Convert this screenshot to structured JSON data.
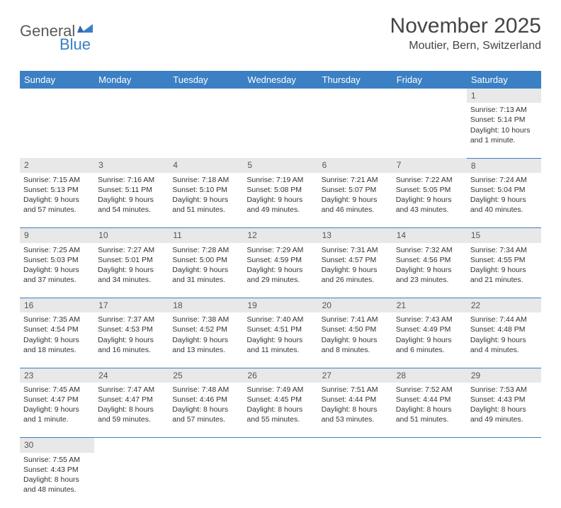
{
  "logo": {
    "textGray": "General",
    "textBlue": "Blue"
  },
  "title": "November 2025",
  "location": "Moutier, Bern, Switzerland",
  "header_bg": "#3b7fc4",
  "header_fg": "#ffffff",
  "daynum_bg": "#e8e8e8",
  "divider_color": "#3b7fc4",
  "days": [
    "Sunday",
    "Monday",
    "Tuesday",
    "Wednesday",
    "Thursday",
    "Friday",
    "Saturday"
  ],
  "weeks": [
    {
      "nums": [
        "",
        "",
        "",
        "",
        "",
        "",
        "1"
      ],
      "cells": [
        null,
        null,
        null,
        null,
        null,
        null,
        {
          "sunrise": "Sunrise: 7:13 AM",
          "sunset": "Sunset: 5:14 PM",
          "day1": "Daylight: 10 hours",
          "day2": "and 1 minute."
        }
      ]
    },
    {
      "nums": [
        "2",
        "3",
        "4",
        "5",
        "6",
        "7",
        "8"
      ],
      "cells": [
        {
          "sunrise": "Sunrise: 7:15 AM",
          "sunset": "Sunset: 5:13 PM",
          "day1": "Daylight: 9 hours",
          "day2": "and 57 minutes."
        },
        {
          "sunrise": "Sunrise: 7:16 AM",
          "sunset": "Sunset: 5:11 PM",
          "day1": "Daylight: 9 hours",
          "day2": "and 54 minutes."
        },
        {
          "sunrise": "Sunrise: 7:18 AM",
          "sunset": "Sunset: 5:10 PM",
          "day1": "Daylight: 9 hours",
          "day2": "and 51 minutes."
        },
        {
          "sunrise": "Sunrise: 7:19 AM",
          "sunset": "Sunset: 5:08 PM",
          "day1": "Daylight: 9 hours",
          "day2": "and 49 minutes."
        },
        {
          "sunrise": "Sunrise: 7:21 AM",
          "sunset": "Sunset: 5:07 PM",
          "day1": "Daylight: 9 hours",
          "day2": "and 46 minutes."
        },
        {
          "sunrise": "Sunrise: 7:22 AM",
          "sunset": "Sunset: 5:05 PM",
          "day1": "Daylight: 9 hours",
          "day2": "and 43 minutes."
        },
        {
          "sunrise": "Sunrise: 7:24 AM",
          "sunset": "Sunset: 5:04 PM",
          "day1": "Daylight: 9 hours",
          "day2": "and 40 minutes."
        }
      ]
    },
    {
      "nums": [
        "9",
        "10",
        "11",
        "12",
        "13",
        "14",
        "15"
      ],
      "cells": [
        {
          "sunrise": "Sunrise: 7:25 AM",
          "sunset": "Sunset: 5:03 PM",
          "day1": "Daylight: 9 hours",
          "day2": "and 37 minutes."
        },
        {
          "sunrise": "Sunrise: 7:27 AM",
          "sunset": "Sunset: 5:01 PM",
          "day1": "Daylight: 9 hours",
          "day2": "and 34 minutes."
        },
        {
          "sunrise": "Sunrise: 7:28 AM",
          "sunset": "Sunset: 5:00 PM",
          "day1": "Daylight: 9 hours",
          "day2": "and 31 minutes."
        },
        {
          "sunrise": "Sunrise: 7:29 AM",
          "sunset": "Sunset: 4:59 PM",
          "day1": "Daylight: 9 hours",
          "day2": "and 29 minutes."
        },
        {
          "sunrise": "Sunrise: 7:31 AM",
          "sunset": "Sunset: 4:57 PM",
          "day1": "Daylight: 9 hours",
          "day2": "and 26 minutes."
        },
        {
          "sunrise": "Sunrise: 7:32 AM",
          "sunset": "Sunset: 4:56 PM",
          "day1": "Daylight: 9 hours",
          "day2": "and 23 minutes."
        },
        {
          "sunrise": "Sunrise: 7:34 AM",
          "sunset": "Sunset: 4:55 PM",
          "day1": "Daylight: 9 hours",
          "day2": "and 21 minutes."
        }
      ]
    },
    {
      "nums": [
        "16",
        "17",
        "18",
        "19",
        "20",
        "21",
        "22"
      ],
      "cells": [
        {
          "sunrise": "Sunrise: 7:35 AM",
          "sunset": "Sunset: 4:54 PM",
          "day1": "Daylight: 9 hours",
          "day2": "and 18 minutes."
        },
        {
          "sunrise": "Sunrise: 7:37 AM",
          "sunset": "Sunset: 4:53 PM",
          "day1": "Daylight: 9 hours",
          "day2": "and 16 minutes."
        },
        {
          "sunrise": "Sunrise: 7:38 AM",
          "sunset": "Sunset: 4:52 PM",
          "day1": "Daylight: 9 hours",
          "day2": "and 13 minutes."
        },
        {
          "sunrise": "Sunrise: 7:40 AM",
          "sunset": "Sunset: 4:51 PM",
          "day1": "Daylight: 9 hours",
          "day2": "and 11 minutes."
        },
        {
          "sunrise": "Sunrise: 7:41 AM",
          "sunset": "Sunset: 4:50 PM",
          "day1": "Daylight: 9 hours",
          "day2": "and 8 minutes."
        },
        {
          "sunrise": "Sunrise: 7:43 AM",
          "sunset": "Sunset: 4:49 PM",
          "day1": "Daylight: 9 hours",
          "day2": "and 6 minutes."
        },
        {
          "sunrise": "Sunrise: 7:44 AM",
          "sunset": "Sunset: 4:48 PM",
          "day1": "Daylight: 9 hours",
          "day2": "and 4 minutes."
        }
      ]
    },
    {
      "nums": [
        "23",
        "24",
        "25",
        "26",
        "27",
        "28",
        "29"
      ],
      "cells": [
        {
          "sunrise": "Sunrise: 7:45 AM",
          "sunset": "Sunset: 4:47 PM",
          "day1": "Daylight: 9 hours",
          "day2": "and 1 minute."
        },
        {
          "sunrise": "Sunrise: 7:47 AM",
          "sunset": "Sunset: 4:47 PM",
          "day1": "Daylight: 8 hours",
          "day2": "and 59 minutes."
        },
        {
          "sunrise": "Sunrise: 7:48 AM",
          "sunset": "Sunset: 4:46 PM",
          "day1": "Daylight: 8 hours",
          "day2": "and 57 minutes."
        },
        {
          "sunrise": "Sunrise: 7:49 AM",
          "sunset": "Sunset: 4:45 PM",
          "day1": "Daylight: 8 hours",
          "day2": "and 55 minutes."
        },
        {
          "sunrise": "Sunrise: 7:51 AM",
          "sunset": "Sunset: 4:44 PM",
          "day1": "Daylight: 8 hours",
          "day2": "and 53 minutes."
        },
        {
          "sunrise": "Sunrise: 7:52 AM",
          "sunset": "Sunset: 4:44 PM",
          "day1": "Daylight: 8 hours",
          "day2": "and 51 minutes."
        },
        {
          "sunrise": "Sunrise: 7:53 AM",
          "sunset": "Sunset: 4:43 PM",
          "day1": "Daylight: 8 hours",
          "day2": "and 49 minutes."
        }
      ]
    },
    {
      "nums": [
        "30",
        "",
        "",
        "",
        "",
        "",
        ""
      ],
      "cells": [
        {
          "sunrise": "Sunrise: 7:55 AM",
          "sunset": "Sunset: 4:43 PM",
          "day1": "Daylight: 8 hours",
          "day2": "and 48 minutes."
        },
        null,
        null,
        null,
        null,
        null,
        null
      ]
    }
  ]
}
